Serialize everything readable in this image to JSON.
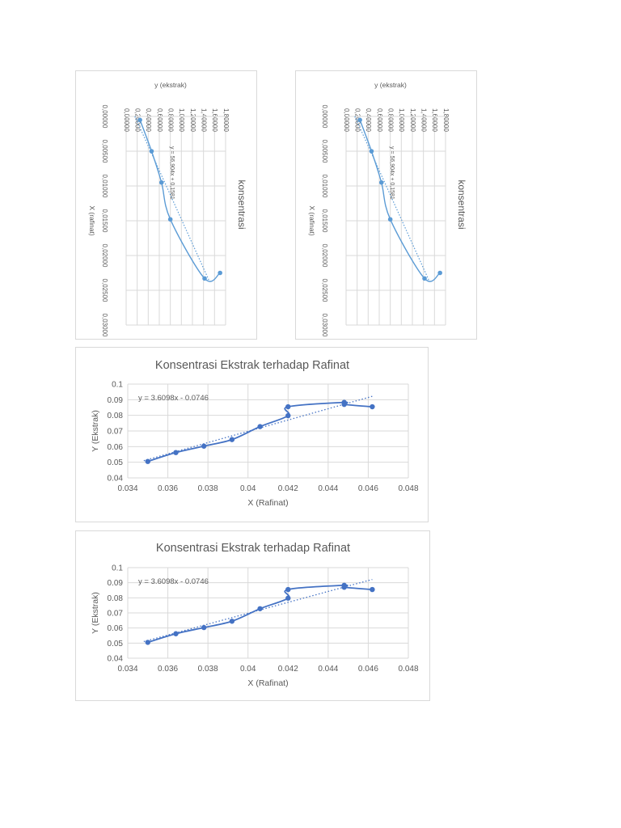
{
  "chart_data": [
    {
      "type": "line",
      "orientation": "rotated-90",
      "title": "konsentrasi",
      "xlabel": "X (rafinat)",
      "ylabel": "y (ekstrak)",
      "x_ticks": [
        "0,00000",
        "0,00500",
        "0,01000",
        "0,01500",
        "0,02000",
        "0,02500",
        "0,03000"
      ],
      "y_ticks": [
        "0,00000",
        "0,20000",
        "0,40000",
        "0,60000",
        "0,80000",
        "1,00000",
        "1,20000",
        "1,40000",
        "1,60000",
        "1,80000"
      ],
      "xlim": [
        0,
        0.03
      ],
      "ylim": [
        0,
        1.8
      ],
      "grid": true,
      "series": [
        {
          "x": [
            0.0005,
            0.005,
            0.0095,
            0.0148,
            0.0233,
            0.0225
          ],
          "y": [
            0.25,
            0.46,
            0.64,
            0.8,
            1.42,
            1.7
          ]
        }
      ],
      "trendline": {
        "label": "y = 56,904x + 0,1581",
        "slope": 56.904,
        "intercept": 0.1581,
        "x_range": [
          0.0,
          0.0235
        ]
      },
      "colors": {
        "line": "#5b9bd5",
        "grid": "#d9d9d9"
      }
    },
    {
      "type": "line",
      "orientation": "rotated-90",
      "title": "konsentrasi",
      "xlabel": "X (rafinat)",
      "ylabel": "y (ekstrak)",
      "x_ticks": [
        "0,00000",
        "0,00500",
        "0,01000",
        "0,01500",
        "0,02000",
        "0,02500",
        "0,03000"
      ],
      "y_ticks": [
        "0,00000",
        "0,20000",
        "0,40000",
        "0,60000",
        "0,80000",
        "1,00000",
        "1,20000",
        "1,40000",
        "1,60000",
        "1,80000"
      ],
      "xlim": [
        0,
        0.03
      ],
      "ylim": [
        0,
        1.8
      ],
      "grid": true,
      "series": [
        {
          "x": [
            0.0005,
            0.005,
            0.0095,
            0.0148,
            0.0233,
            0.0225
          ],
          "y": [
            0.25,
            0.46,
            0.64,
            0.8,
            1.42,
            1.7
          ]
        }
      ],
      "trendline": {
        "label": "y = 56,904x + 0,1581",
        "slope": 56.904,
        "intercept": 0.1581,
        "x_range": [
          0.0,
          0.0235
        ]
      },
      "colors": {
        "line": "#5b9bd5",
        "grid": "#d9d9d9"
      }
    },
    {
      "type": "line",
      "title": "Konsentrasi Ekstrak terhadap Rafinat",
      "xlabel": "X (Rafinat)",
      "ylabel": "Y (Ekstrak)",
      "x_ticks": [
        "0.034",
        "0.036",
        "0.038",
        "0.04",
        "0.042",
        "0.044",
        "0.046",
        "0.048"
      ],
      "y_ticks": [
        "0.04",
        "0.05",
        "0.06",
        "0.07",
        "0.08",
        "0.09",
        "0.1"
      ],
      "xlim": [
        0.034,
        0.048
      ],
      "ylim": [
        0.04,
        0.1
      ],
      "grid": true,
      "series": [
        {
          "x": [
            0.035,
            0.0364,
            0.0378,
            0.0392,
            0.0406,
            0.042,
            0.042,
            0.0448,
            0.0448,
            0.0462
          ],
          "y": [
            0.0505,
            0.0562,
            0.0603,
            0.0645,
            0.0728,
            0.0798,
            0.0855,
            0.0883,
            0.087,
            0.0855
          ]
        }
      ],
      "trendline": {
        "label": "y = 3.6098x - 0.0746",
        "slope": 3.6098,
        "intercept": -0.0746,
        "x_range": [
          0.0348,
          0.0462
        ]
      },
      "colors": {
        "line": "#4472c4",
        "grid": "#d9d9d9"
      }
    },
    {
      "type": "line",
      "title": "Konsentrasi Ekstrak terhadap Rafinat",
      "xlabel": "X (Rafinat)",
      "ylabel": "Y (Ekstrak)",
      "x_ticks": [
        "0.034",
        "0.036",
        "0.038",
        "0.04",
        "0.042",
        "0.044",
        "0.046",
        "0.048"
      ],
      "y_ticks": [
        "0.04",
        "0.05",
        "0.06",
        "0.07",
        "0.08",
        "0.09",
        "0.1"
      ],
      "xlim": [
        0.034,
        0.048
      ],
      "ylim": [
        0.04,
        0.1
      ],
      "grid": true,
      "series": [
        {
          "x": [
            0.035,
            0.0364,
            0.0378,
            0.0392,
            0.0406,
            0.042,
            0.042,
            0.0448,
            0.0448,
            0.0462
          ],
          "y": [
            0.0505,
            0.0562,
            0.0603,
            0.0645,
            0.0728,
            0.0798,
            0.0855,
            0.0883,
            0.087,
            0.0855
          ]
        }
      ],
      "trendline": {
        "label": "y = 3.6098x - 0.0746",
        "slope": 3.6098,
        "intercept": -0.0746,
        "x_range": [
          0.0348,
          0.0462
        ]
      },
      "colors": {
        "line": "#4472c4",
        "grid": "#d9d9d9"
      }
    }
  ]
}
